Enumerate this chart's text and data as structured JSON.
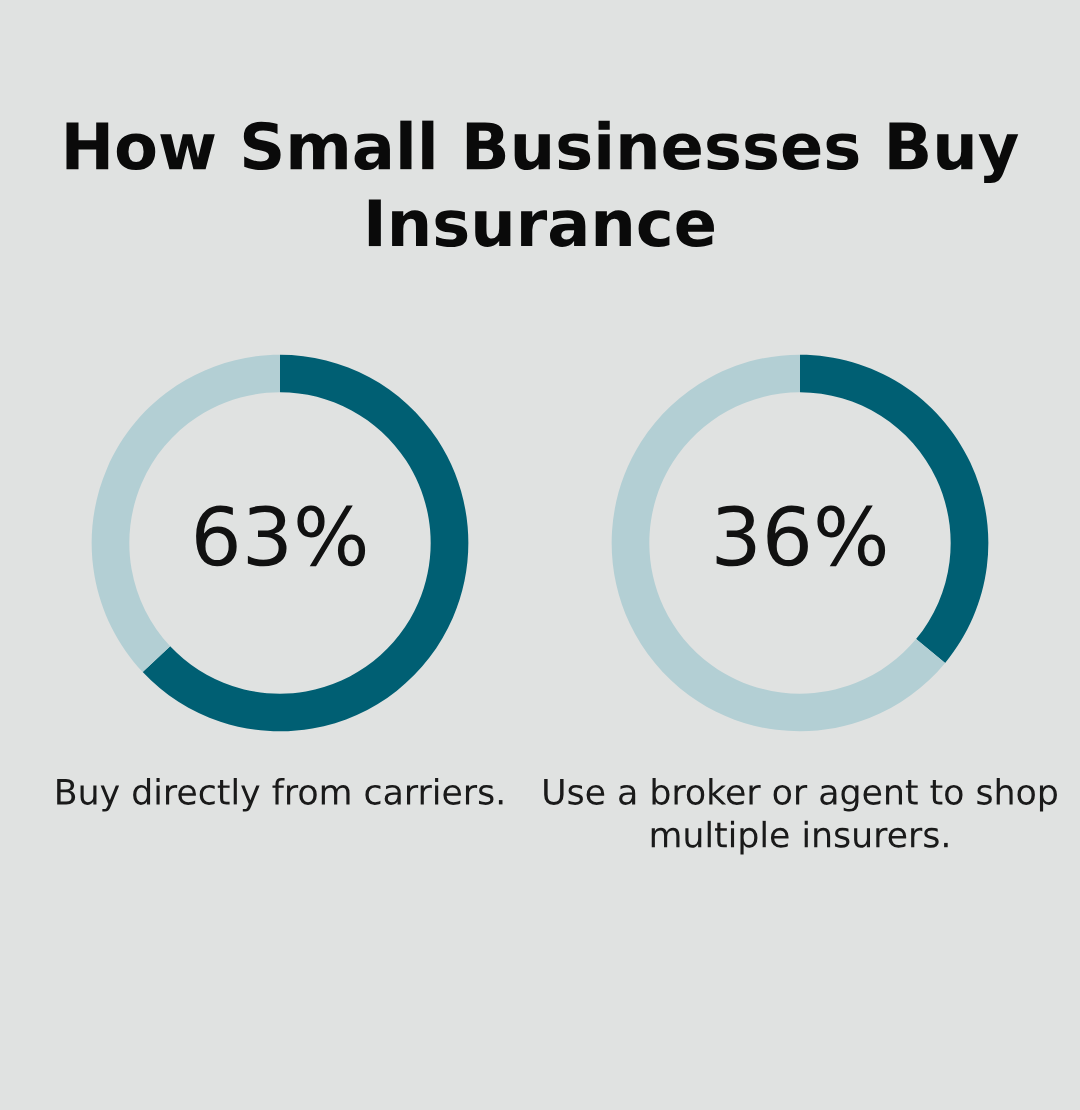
{
  "chart_data": [
    {
      "type": "donut",
      "title": "How Small Businesses Buy Insurance",
      "categories": [
        null,
        null
      ],
      "values": [
        63,
        37
      ],
      "colors": [
        "#005f73",
        "#b3cfd4"
      ],
      "value_labels": [
        "63%",
        null
      ],
      "annotations": [
        "Buy directly from carriers."
      ]
    },
    {
      "type": "donut",
      "categories": [
        null,
        null
      ],
      "values": [
        36,
        64
      ],
      "colors": [
        "#005f73",
        "#b3cfd4"
      ],
      "value_labels": [
        "36%",
        null
      ],
      "annotations": [
        "Use a broker or agent to shop multiple insurers."
      ]
    }
  ]
}
